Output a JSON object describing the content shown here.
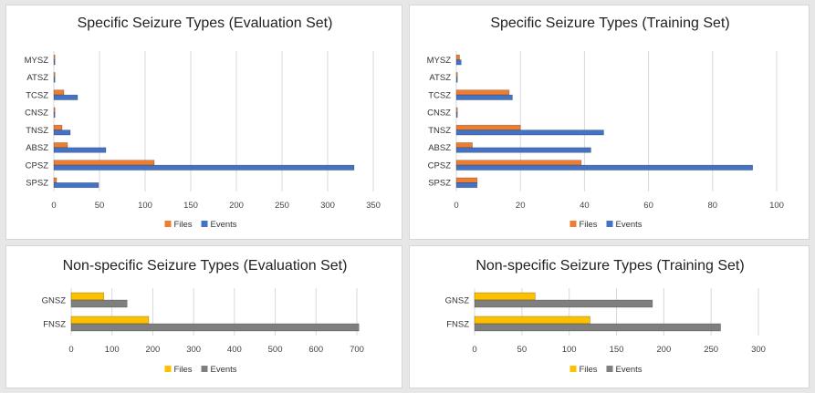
{
  "chart_data": [
    {
      "type": "bar",
      "orientation": "horizontal",
      "title": "Specific Seizure Types (Evaluation Set)",
      "categories": [
        "MYSZ",
        "ATSZ",
        "TCSZ",
        "CNSZ",
        "TNSZ",
        "ABSZ",
        "CPSZ",
        "SPSZ"
      ],
      "series": [
        {
          "name": "Files",
          "color": "#ed7d31",
          "values": [
            1,
            1,
            11,
            1,
            9,
            15,
            110,
            3
          ]
        },
        {
          "name": "Events",
          "color": "#4472c4",
          "values": [
            1,
            1,
            26,
            1,
            18,
            57,
            329,
            49
          ]
        }
      ],
      "xlim": [
        0,
        350
      ],
      "xticks": [
        0,
        50,
        100,
        150,
        200,
        250,
        300,
        350
      ],
      "grid": true,
      "legend": "bottom"
    },
    {
      "type": "bar",
      "orientation": "horizontal",
      "title": "Specific Seizure Types (Training Set)",
      "categories": [
        "MYSZ",
        "ATSZ",
        "TCSZ",
        "CNSZ",
        "TNSZ",
        "ABSZ",
        "CPSZ",
        "SPSZ"
      ],
      "series": [
        {
          "name": "Files",
          "color": "#ed7d31",
          "values": [
            1,
            0.3,
            16.5,
            0.3,
            20,
            5,
            39,
            6.5
          ]
        },
        {
          "name": "Events",
          "color": "#4472c4",
          "values": [
            1.5,
            0.3,
            17.5,
            0.3,
            46,
            42,
            92.5,
            6.5
          ]
        }
      ],
      "xlim": [
        0,
        100
      ],
      "xticks": [
        0,
        20,
        40,
        60,
        80,
        100
      ],
      "grid": true,
      "legend": "bottom"
    },
    {
      "type": "bar",
      "orientation": "horizontal",
      "title": "Non-specific Seizure Types (Evaluation Set)",
      "categories": [
        "GNSZ",
        "FNSZ"
      ],
      "series": [
        {
          "name": "Files",
          "color": "#ffc000",
          "values": [
            80,
            190
          ]
        },
        {
          "name": "Events",
          "color": "#7f7f7f",
          "values": [
            137,
            705
          ]
        }
      ],
      "xlim": [
        0,
        700
      ],
      "xticks": [
        0,
        100,
        200,
        300,
        400,
        500,
        600,
        700
      ],
      "grid": true,
      "legend": "bottom"
    },
    {
      "type": "bar",
      "orientation": "horizontal",
      "title": "Non-specific Seizure Types (Training Set)",
      "categories": [
        "GNSZ",
        "FNSZ"
      ],
      "series": [
        {
          "name": "Files",
          "color": "#ffc000",
          "values": [
            64,
            122
          ]
        },
        {
          "name": "Events",
          "color": "#7f7f7f",
          "values": [
            188,
            260
          ]
        }
      ],
      "xlim": [
        0,
        300
      ],
      "xticks": [
        0,
        50,
        100,
        150,
        200,
        250,
        300
      ],
      "grid": true,
      "legend": "bottom"
    }
  ]
}
